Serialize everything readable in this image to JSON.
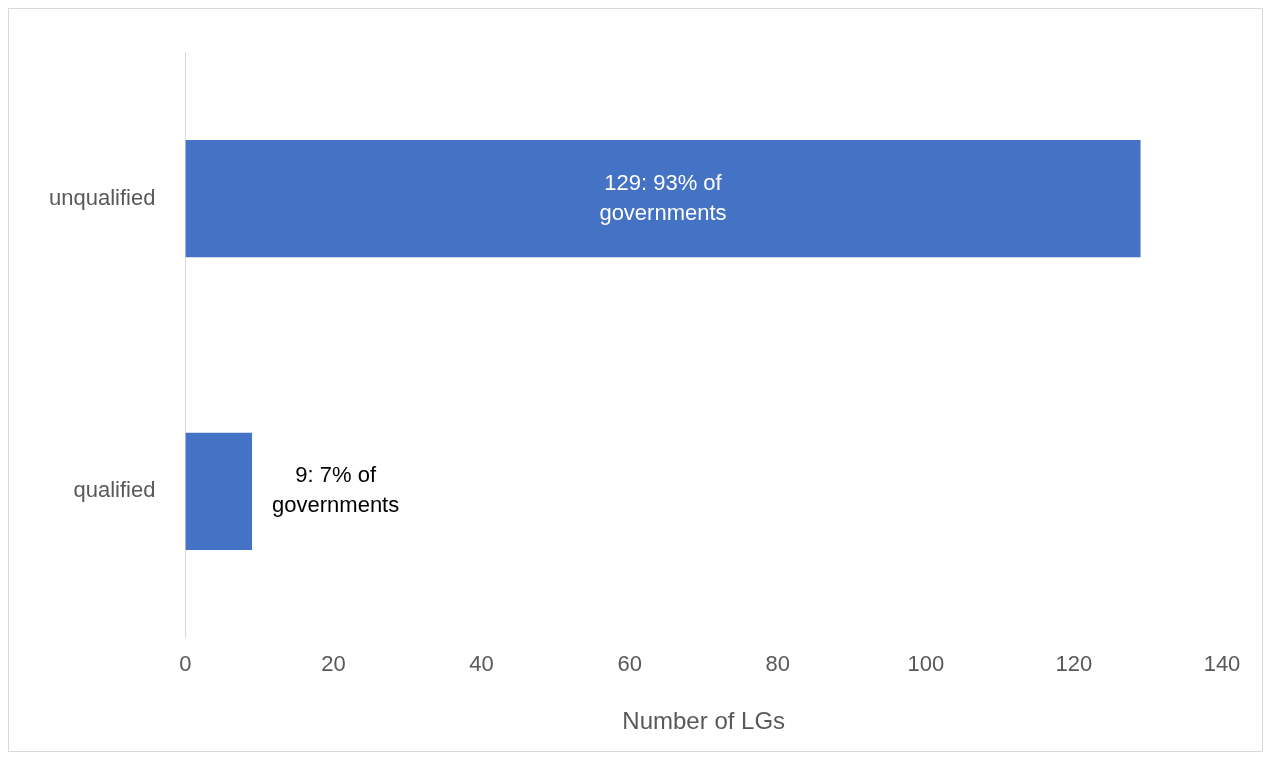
{
  "chart_data": {
    "type": "bar",
    "orientation": "horizontal",
    "categories": [
      "unqualified",
      "qualified"
    ],
    "series": [
      {
        "color": "#4472c4",
        "values": [
          129,
          9
        ],
        "value_labels": [
          "129: 93% of governments",
          "9: 7% of governments"
        ]
      }
    ],
    "xlim": [
      0,
      140
    ],
    "xticks": [
      0,
      20,
      40,
      60,
      80,
      100,
      120,
      140
    ],
    "xlabel": "Number of LGs"
  }
}
